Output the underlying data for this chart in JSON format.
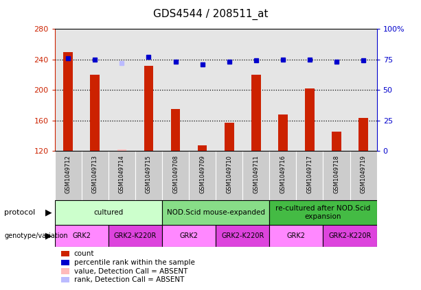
{
  "title": "GDS4544 / 208511_at",
  "samples": [
    "GSM1049712",
    "GSM1049713",
    "GSM1049714",
    "GSM1049715",
    "GSM1049708",
    "GSM1049709",
    "GSM1049710",
    "GSM1049711",
    "GSM1049716",
    "GSM1049717",
    "GSM1049718",
    "GSM1049719"
  ],
  "counts": [
    250,
    220,
    122,
    232,
    175,
    127,
    157,
    220,
    168,
    202,
    145,
    163
  ],
  "percentile_ranks": [
    76,
    75,
    null,
    77,
    73,
    71,
    73,
    74,
    75,
    75,
    73,
    74
  ],
  "absent_count": [
    null,
    null,
    122,
    null,
    null,
    null,
    null,
    null,
    null,
    null,
    null,
    null
  ],
  "absent_rank": [
    null,
    null,
    72,
    null,
    null,
    null,
    null,
    null,
    null,
    null,
    null,
    null
  ],
  "ylim_left": [
    120,
    280
  ],
  "ylim_right": [
    0,
    100
  ],
  "yticks_left": [
    120,
    160,
    200,
    240,
    280
  ],
  "yticks_right": [
    0,
    25,
    50,
    75,
    100
  ],
  "ytick_labels_right": [
    "0",
    "25",
    "50",
    "75",
    "100%"
  ],
  "grid_lines": [
    160,
    200,
    240
  ],
  "protocol_groups": [
    {
      "label": "cultured",
      "start": 0,
      "end": 3,
      "color": "#ccffcc"
    },
    {
      "label": "NOD.Scid mouse-expanded",
      "start": 4,
      "end": 7,
      "color": "#88dd88"
    },
    {
      "label": "re-cultured after NOD.Scid\nexpansion",
      "start": 8,
      "end": 11,
      "color": "#44bb44"
    }
  ],
  "genotype_groups": [
    {
      "label": "GRK2",
      "start": 0,
      "end": 1,
      "color": "#ff88ff"
    },
    {
      "label": "GRK2-K220R",
      "start": 2,
      "end": 3,
      "color": "#dd44dd"
    },
    {
      "label": "GRK2",
      "start": 4,
      "end": 5,
      "color": "#ff88ff"
    },
    {
      "label": "GRK2-K220R",
      "start": 6,
      "end": 7,
      "color": "#dd44dd"
    },
    {
      "label": "GRK2",
      "start": 8,
      "end": 9,
      "color": "#ff88ff"
    },
    {
      "label": "GRK2-K220R",
      "start": 10,
      "end": 11,
      "color": "#dd44dd"
    }
  ],
  "bar_color": "#cc2200",
  "dot_color": "#0000cc",
  "absent_bar_color": "#ffbbbb",
  "absent_dot_color": "#bbbbff",
  "sample_bg_color": "#cccccc",
  "left_axis_color": "#cc2200",
  "right_axis_color": "#0000cc",
  "legend_items": [
    {
      "color": "#cc2200",
      "label": "count"
    },
    {
      "color": "#0000cc",
      "label": "percentile rank within the sample"
    },
    {
      "color": "#ffbbbb",
      "label": "value, Detection Call = ABSENT"
    },
    {
      "color": "#bbbbff",
      "label": "rank, Detection Call = ABSENT"
    }
  ]
}
